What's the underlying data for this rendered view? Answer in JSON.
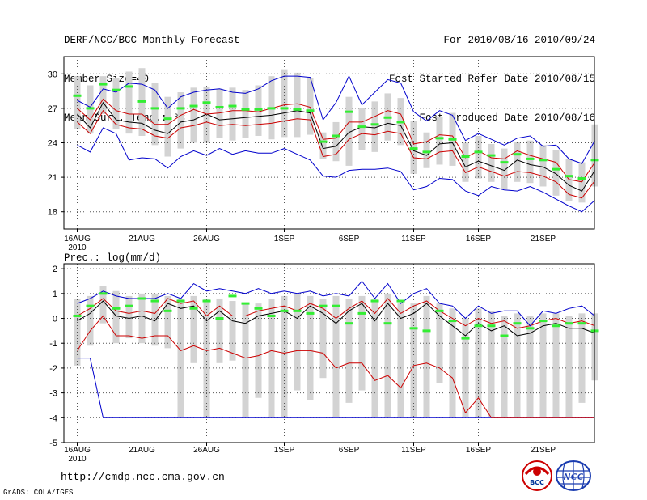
{
  "header": {
    "title": "DERF/NCC/BCC Monthly Forecast",
    "member_size": "Member Size=40",
    "variable": "Mean Surf. Temp.: °C",
    "period": "For 2010/08/16-2010/09/24",
    "started": "Fcst Started Refer Date 2010/08/15",
    "produced": "Fcst Produced Date 2010/08/16"
  },
  "footer": {
    "url": "http://cmdp.ncc.cma.gov.cn",
    "grads": "GrADS: COLA/IGES",
    "logo_left": "BCC",
    "logo_right": "NCC"
  },
  "colors": {
    "envelope": "#0000cc",
    "spread": "#cc0000",
    "mean": "#000000",
    "median_tick": "#33ee33",
    "box": "#d3d3d3",
    "grid": "#555555"
  },
  "chart_data": [
    {
      "type": "line",
      "title": "Mean Surf. Temp.: °C",
      "x_tick_labels": [
        "16AUG",
        "21AUG",
        "26AUG",
        "1SEP",
        "6SEP",
        "11SEP",
        "16SEP",
        "21SEP"
      ],
      "x_tick_days": [
        0,
        5,
        10,
        16,
        21,
        26,
        31,
        36
      ],
      "x_sub_label": "2010",
      "ylim": [
        16.5,
        31.5
      ],
      "yticks": [
        18,
        21,
        24,
        27,
        30
      ],
      "series": [
        {
          "name": "max",
          "values": [
            23.8,
            23.2,
            25.3,
            24.8,
            22.5,
            22.7,
            22.6,
            21.8,
            22.8,
            23.3,
            22.9,
            23.5,
            23.0,
            23.3,
            23.1,
            23.1,
            23.5,
            23.0,
            22.5,
            21.1,
            21.0,
            21.6,
            21.7,
            21.7,
            21.8,
            21.5,
            19.9,
            20.2,
            20.9,
            20.8,
            19.8,
            19.4,
            20.2,
            19.9,
            19.8,
            20.2,
            19.7,
            19.1,
            18.5,
            18.0,
            19.0
          ]
        },
        {
          "name": "spread_low",
          "values": [
            25.8,
            24.8,
            26.8,
            25.6,
            25.3,
            25.2,
            24.6,
            24.4,
            25.3,
            25.5,
            25.8,
            25.5,
            25.6,
            25.5,
            25.6,
            25.7,
            25.9,
            26.1,
            26.0,
            22.8,
            23.0,
            24.3,
            24.8,
            24.7,
            25.0,
            24.8,
            22.7,
            22.6,
            23.2,
            23.3,
            21.4,
            21.9,
            21.5,
            21.1,
            21.5,
            21.4,
            21.1,
            20.6,
            19.5,
            19.2,
            20.7
          ]
        },
        {
          "name": "mean",
          "values": [
            26.5,
            25.3,
            27.5,
            26.0,
            25.8,
            25.7,
            25.1,
            24.8,
            25.8,
            26.0,
            26.5,
            26.0,
            26.1,
            26.2,
            26.3,
            26.4,
            26.6,
            26.8,
            26.6,
            23.5,
            23.7,
            24.9,
            25.4,
            25.3,
            25.7,
            25.5,
            23.3,
            22.9,
            23.9,
            24.0,
            21.9,
            22.4,
            22.0,
            21.6,
            22.5,
            22.1,
            21.9,
            21.3,
            20.3,
            19.8,
            21.6
          ]
        },
        {
          "name": "spread_high",
          "values": [
            27.0,
            26.0,
            27.8,
            26.8,
            26.5,
            26.5,
            25.6,
            25.6,
            26.4,
            26.9,
            26.5,
            26.6,
            26.8,
            26.8,
            26.7,
            27.0,
            27.3,
            27.4,
            27.1,
            24.3,
            24.4,
            25.8,
            25.8,
            26.3,
            26.8,
            26.5,
            23.9,
            24.1,
            24.7,
            24.6,
            22.7,
            23.3,
            22.7,
            22.6,
            23.3,
            22.9,
            22.6,
            22.3,
            20.8,
            20.6,
            22.3
          ]
        },
        {
          "name": "min_envelope_top",
          "values": [
            27.7,
            27.1,
            28.7,
            28.4,
            29.2,
            29.1,
            28.6,
            27.0,
            28.0,
            28.4,
            28.6,
            28.7,
            28.4,
            28.3,
            28.7,
            29.4,
            29.8,
            29.8,
            29.7,
            26.0,
            27.5,
            29.8,
            27.3,
            28.4,
            29.5,
            29.2,
            26.7,
            25.9,
            26.8,
            26.4,
            24.2,
            24.8,
            24.3,
            23.8,
            24.4,
            24.6,
            23.7,
            23.8,
            22.6,
            22.2,
            24.2
          ]
        }
      ],
      "median_ticks": [
        28.1,
        27.0,
        29.1,
        28.6,
        28.9,
        27.6,
        27.0,
        26.1,
        27.0,
        27.2,
        27.5,
        27.1,
        27.2,
        26.9,
        26.9,
        27.0,
        27.0,
        26.9,
        26.8,
        24.1,
        24.6,
        26.7,
        25.4,
        25.6,
        26.2,
        25.8,
        23.5,
        23.2,
        24.4,
        24.3,
        22.8,
        23.2,
        22.9,
        22.3,
        23.0,
        22.6,
        22.5,
        21.7,
        21.1,
        20.9,
        22.5
      ],
      "box_ranges": [
        [
          25.2,
          29.8
        ],
        [
          24.8,
          29.0
        ],
        [
          26.5,
          29.8
        ],
        [
          25.2,
          29.6
        ],
        [
          24.8,
          30.2
        ],
        [
          24.6,
          30.5
        ],
        [
          23.8,
          29.2
        ],
        [
          22.8,
          28.0
        ],
        [
          23.5,
          28.4
        ],
        [
          24.0,
          28.8
        ],
        [
          24.0,
          28.9
        ],
        [
          24.4,
          28.7
        ],
        [
          24.2,
          28.8
        ],
        [
          24.4,
          28.6
        ],
        [
          24.6,
          29.0
        ],
        [
          24.3,
          29.8
        ],
        [
          24.5,
          30.4
        ],
        [
          24.5,
          30.1
        ],
        [
          24.7,
          29.6
        ],
        [
          22.6,
          24.9
        ],
        [
          22.4,
          25.8
        ],
        [
          22.0,
          28.0
        ],
        [
          23.4,
          27.0
        ],
        [
          23.2,
          27.6
        ],
        [
          24.2,
          28.3
        ],
        [
          23.8,
          27.9
        ],
        [
          21.3,
          25.9
        ],
        [
          21.8,
          24.9
        ],
        [
          22.1,
          26.3
        ],
        [
          22.0,
          26.6
        ],
        [
          20.6,
          24.0
        ],
        [
          20.9,
          24.6
        ],
        [
          20.6,
          23.9
        ],
        [
          20.0,
          23.5
        ],
        [
          20.6,
          24.1
        ],
        [
          20.5,
          24.2
        ],
        [
          20.2,
          23.8
        ],
        [
          19.4,
          23.4
        ],
        [
          18.9,
          22.6
        ],
        [
          18.8,
          22.3
        ],
        [
          20.2,
          25.6
        ]
      ]
    },
    {
      "type": "line",
      "title": "Prec.: log(mm/d)",
      "x_tick_labels": [
        "16AUG",
        "21AUG",
        "26AUG",
        "1SEP",
        "6SEP",
        "11SEP",
        "16SEP",
        "21SEP"
      ],
      "x_tick_days": [
        0,
        5,
        10,
        16,
        21,
        26,
        31,
        36
      ],
      "x_sub_label": "2010",
      "ylim": [
        -5,
        2.2
      ],
      "yticks": [
        -5,
        -4,
        -3,
        -2,
        -1,
        0,
        1,
        2
      ],
      "series": [
        {
          "name": "min",
          "values": [
            -1.6,
            -1.6,
            -4,
            -4,
            -4,
            -4,
            -4,
            -4,
            -4,
            -4,
            -4,
            -4,
            -4,
            -4,
            -4,
            -4,
            -4,
            -4,
            -4,
            -4,
            -4,
            -4,
            -4,
            -4,
            -4,
            -4,
            -4,
            -4,
            -4,
            -4,
            -4,
            -4,
            -4,
            -4,
            -4,
            -4,
            -4,
            -4,
            -4,
            -4,
            -4
          ]
        },
        {
          "name": "spread_low",
          "values": [
            -1.3,
            -0.5,
            0.1,
            -0.7,
            -0.7,
            -0.8,
            -0.7,
            -0.7,
            -1.3,
            -1.1,
            -1.3,
            -1.2,
            -1.4,
            -1.6,
            -1.5,
            -1.3,
            -1.4,
            -1.3,
            -1.3,
            -1.4,
            -2.0,
            -1.8,
            -1.8,
            -2.5,
            -2.3,
            -2.8,
            -1.9,
            -1.8,
            -2.0,
            -2.4,
            -3.8,
            -3.2,
            -4,
            -4,
            -4,
            -4,
            -4,
            -4,
            -4,
            -4,
            -4
          ]
        },
        {
          "name": "mean",
          "values": [
            -0.1,
            0.2,
            0.7,
            0.1,
            0.0,
            0.1,
            -0.1,
            0.6,
            0.4,
            0.5,
            -0.1,
            0.3,
            -0.1,
            -0.2,
            0.1,
            0.2,
            0.3,
            0.0,
            0.5,
            0.2,
            -0.2,
            0.3,
            0.6,
            -0.1,
            0.6,
            0.0,
            0.2,
            0.6,
            0.1,
            -0.3,
            -0.7,
            -0.2,
            -0.5,
            -0.3,
            -0.7,
            -0.6,
            -0.3,
            -0.2,
            -0.4,
            -0.4,
            -0.6
          ]
        },
        {
          "name": "spread_high",
          "values": [
            0.1,
            0.4,
            0.8,
            0.3,
            0.2,
            0.3,
            0.2,
            0.8,
            0.6,
            0.7,
            0.1,
            0.5,
            0.1,
            0.1,
            0.3,
            0.4,
            0.5,
            0.3,
            0.6,
            0.4,
            0.0,
            0.4,
            0.7,
            0.2,
            0.8,
            0.2,
            0.5,
            0.7,
            0.3,
            0.0,
            -0.3,
            0.0,
            -0.2,
            -0.1,
            -0.4,
            -0.3,
            -0.1,
            0.0,
            -0.2,
            -0.1,
            -0.3
          ]
        },
        {
          "name": "max",
          "values": [
            0.6,
            0.8,
            1.1,
            0.9,
            0.8,
            0.8,
            0.8,
            1.0,
            0.8,
            1.4,
            1.1,
            1.2,
            1.1,
            1.0,
            1.2,
            1.0,
            1.1,
            1.0,
            1.1,
            0.9,
            1.0,
            0.9,
            1.5,
            0.8,
            1.4,
            0.6,
            1.0,
            1.2,
            0.6,
            0.5,
            0.0,
            0.5,
            0.2,
            0.3,
            0.3,
            -0.3,
            0.3,
            0.2,
            0.4,
            0.5,
            0.1
          ]
        }
      ],
      "median_ticks": [
        0.1,
        0.5,
        1.0,
        0.4,
        0.5,
        0.8,
        0.7,
        0.3,
        0.7,
        0.4,
        0.7,
        0.0,
        0.9,
        0.6,
        0.4,
        0.1,
        0.3,
        0.3,
        0.2,
        0.5,
        0.5,
        -0.2,
        0.2,
        0.7,
        -0.2,
        0.7,
        -0.4,
        -0.5,
        0.3,
        -0.1,
        -0.8,
        -0.3,
        -0.3,
        -0.7,
        -0.2,
        -0.4,
        -0.1,
        -0.3,
        -0.2,
        -0.2,
        -0.5
      ],
      "box_ranges": [
        [
          -1.9,
          0.8
        ],
        [
          -1.1,
          0.9
        ],
        [
          -0.2,
          1.3
        ],
        [
          -1.0,
          1.1
        ],
        [
          -0.8,
          0.9
        ],
        [
          -1.0,
          1.0
        ],
        [
          -1.1,
          1.0
        ],
        [
          -1.2,
          0.9
        ],
        [
          -4,
          0.8
        ],
        [
          -1.8,
          0.9
        ],
        [
          -4,
          0.8
        ],
        [
          -1.8,
          0.8
        ],
        [
          -1.7,
          0.7
        ],
        [
          -4,
          0.6
        ],
        [
          -3.2,
          0.6
        ],
        [
          -4,
          0.8
        ],
        [
          -4,
          0.9
        ],
        [
          -2.9,
          1.0
        ],
        [
          -3.3,
          0.9
        ],
        [
          -2.4,
          0.8
        ],
        [
          -4,
          0.9
        ],
        [
          -3.4,
          0.8
        ],
        [
          -2.9,
          0.9
        ],
        [
          -4,
          0.8
        ],
        [
          -4,
          1.0
        ],
        [
          -4,
          0.6
        ],
        [
          -4,
          0.6
        ],
        [
          -4,
          0.9
        ],
        [
          -2.6,
          0.6
        ],
        [
          -4,
          0.4
        ],
        [
          -4,
          0.0
        ],
        [
          -4,
          0.4
        ],
        [
          -4,
          0.3
        ],
        [
          -4,
          0.1
        ],
        [
          -4,
          0.2
        ],
        [
          -4,
          0.1
        ],
        [
          -4,
          0.2
        ],
        [
          -4,
          0.2
        ],
        [
          -4,
          0.1
        ],
        [
          -3.4,
          0.2
        ],
        [
          -2.5,
          0.2
        ]
      ]
    }
  ]
}
